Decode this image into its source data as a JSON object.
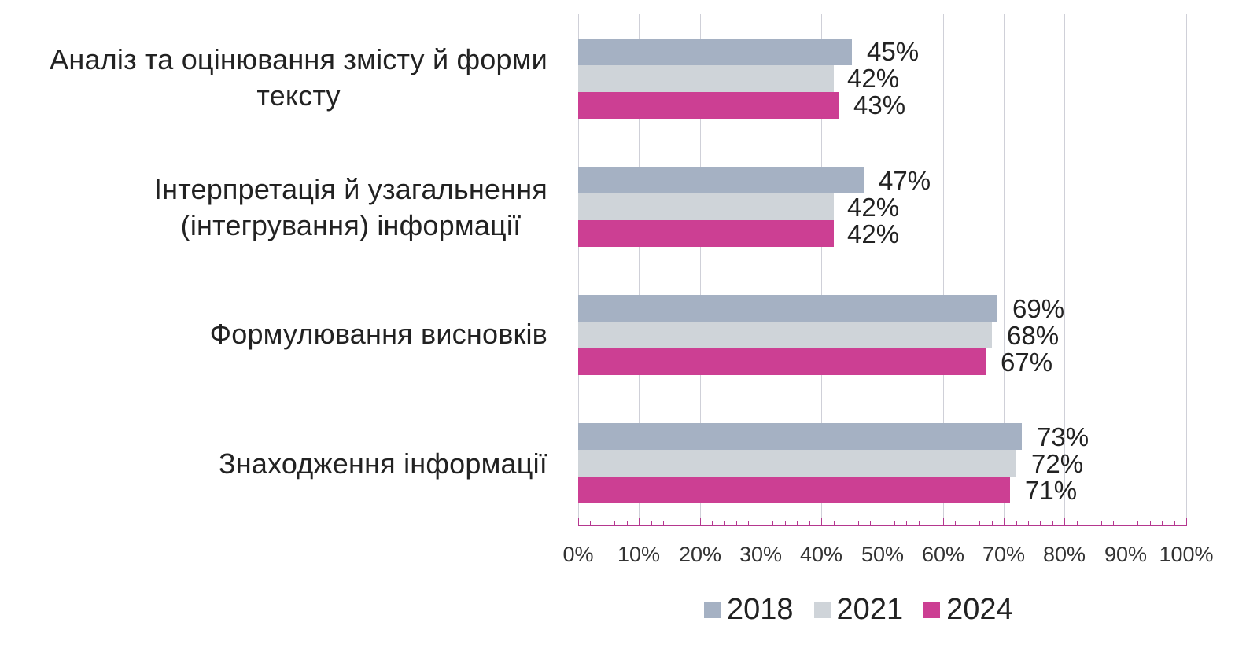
{
  "chart_data": {
    "type": "bar",
    "orientation": "horizontal",
    "title": "",
    "xlabel": "",
    "ylabel": "",
    "xlim": [
      0,
      100
    ],
    "grid": true,
    "legend_position": "bottom",
    "categories": [
      "Аналіз та оцінювання змісту й форми тексту",
      "Інтерпретація й узагальнення (інтегрування) інформації",
      "Формулювання висновків",
      "Знаходження інформації"
    ],
    "series": [
      {
        "name": "2018",
        "color": "#a5b1c3",
        "values": [
          45,
          47,
          69,
          73
        ]
      },
      {
        "name": "2021",
        "color": "#cfd4d9",
        "values": [
          42,
          42,
          68,
          72
        ]
      },
      {
        "name": "2024",
        "color": "#cc3f93",
        "values": [
          43,
          42,
          67,
          71
        ]
      }
    ],
    "tick_labels": [
      "0%",
      "10%",
      "20%",
      "30%",
      "40%",
      "50%",
      "60%",
      "70%",
      "80%",
      "90%",
      "100%"
    ]
  },
  "labels": {
    "cat0_line1": "Аналіз та оцінювання  змісту й форми",
    "cat0_line2": "тексту",
    "cat1_line1": "Інтерпретація  й узагальнення",
    "cat1_line2": "(інтегрування)  інформації",
    "cat2_line1": "Формулювання  висновків",
    "cat3_line1": "Знаходження  інформації"
  },
  "values": {
    "g0": [
      "45%",
      "42%",
      "43%"
    ],
    "g1": [
      "47%",
      "42%",
      "42%"
    ],
    "g2": [
      "69%",
      "68%",
      "67%"
    ],
    "g3": [
      "73%",
      "72%",
      "71%"
    ]
  },
  "legend": {
    "items": [
      {
        "label": "2018",
        "color": "#a5b1c3"
      },
      {
        "label": "2021",
        "color": "#cfd4d9"
      },
      {
        "label": "2024",
        "color": "#cc3f93"
      }
    ]
  }
}
